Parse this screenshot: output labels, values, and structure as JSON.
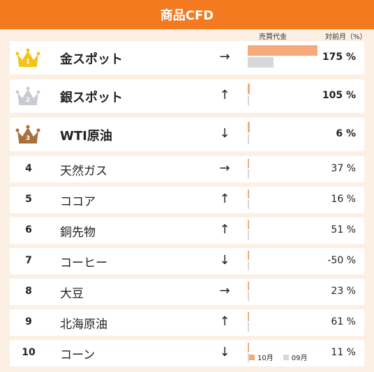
{
  "header": {
    "title": "商品CFD"
  },
  "columns": {
    "volume_label": "売買代金",
    "change_label": "対前月（%）"
  },
  "legend": {
    "oct": "10月",
    "sep": "09月"
  },
  "colors": {
    "header": "#f47a20",
    "oct_bar": "#f7a97a",
    "sep_bar": "#d8d8d8",
    "gold": "#f2c418",
    "silver": "#c9cbd2",
    "bronze": "#a8703a"
  },
  "rows": [
    {
      "rank": "1",
      "name": "金スポット",
      "trend": "→",
      "trend_icon": "arrow-right-icon",
      "change": "175 %",
      "oct_level": 0.95,
      "sep_level": 0.35
    },
    {
      "rank": "2",
      "name": "銀スポット",
      "trend": "↑",
      "trend_icon": "arrow-up-icon",
      "change": "105 %",
      "oct_level": 0.03,
      "sep_level": 0.02
    },
    {
      "rank": "3",
      "name": "WTI原油",
      "trend": "↓",
      "trend_icon": "arrow-down-icon",
      "change": "6 %",
      "oct_level": 0.03,
      "sep_level": 0.02
    },
    {
      "rank": "4",
      "name": "天然ガス",
      "trend": "→",
      "trend_icon": "arrow-right-icon",
      "change": "37 %",
      "oct_level": 0.015,
      "sep_level": 0.01
    },
    {
      "rank": "5",
      "name": "ココア",
      "trend": "↑",
      "trend_icon": "arrow-up-icon",
      "change": "16 %",
      "oct_level": 0.005,
      "sep_level": 0.005
    },
    {
      "rank": "6",
      "name": "銅先物",
      "trend": "↑",
      "trend_icon": "arrow-up-icon",
      "change": "51 %",
      "oct_level": 0.005,
      "sep_level": 0.005
    },
    {
      "rank": "7",
      "name": "コーヒー",
      "trend": "↓",
      "trend_icon": "arrow-down-icon",
      "change": "-50 %",
      "oct_level": 0.005,
      "sep_level": 0.005
    },
    {
      "rank": "8",
      "name": "大豆",
      "trend": "→",
      "trend_icon": "arrow-right-icon",
      "change": "23 %",
      "oct_level": 0.005,
      "sep_level": 0.005
    },
    {
      "rank": "9",
      "name": "北海原油",
      "trend": "↑",
      "trend_icon": "arrow-up-icon",
      "change": "61 %",
      "oct_level": 0.005,
      "sep_level": 0.005
    },
    {
      "rank": "10",
      "name": "コーン",
      "trend": "↓",
      "trend_icon": "arrow-down-icon",
      "change": "11 %",
      "oct_level": 0.005,
      "sep_level": 0.005
    }
  ]
}
